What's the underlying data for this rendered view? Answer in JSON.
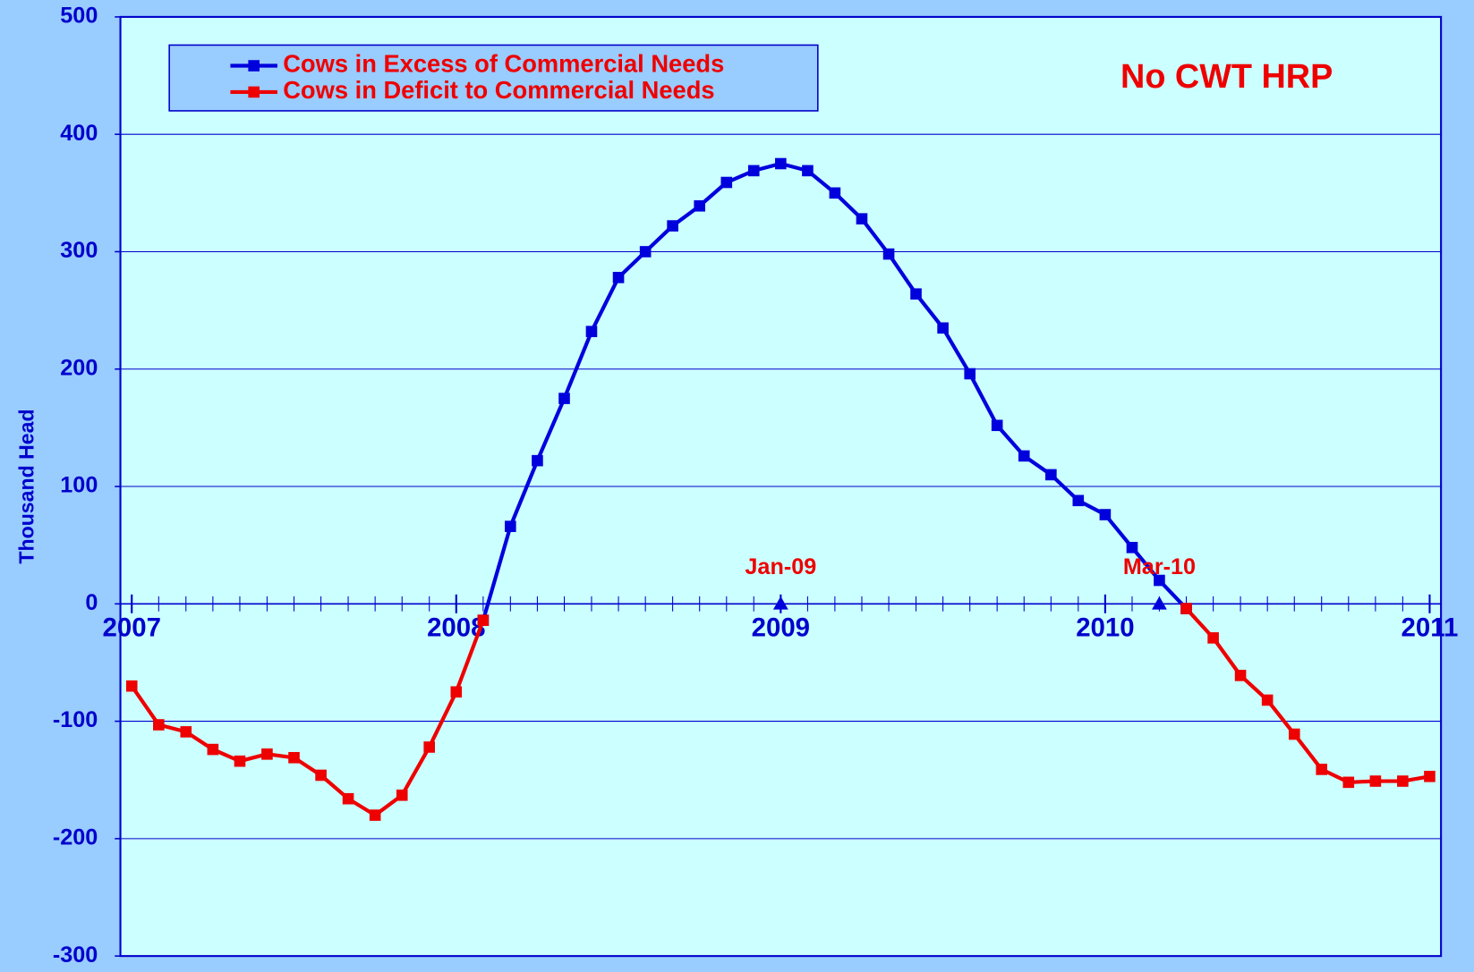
{
  "chart_data": {
    "type": "line",
    "y_label": "Thousand Head",
    "note": "No CWT HRP",
    "legend_position": "upper left",
    "grid": true,
    "x": [
      2007,
      2007.083,
      2007.167,
      2007.25,
      2007.333,
      2007.417,
      2007.5,
      2007.583,
      2007.667,
      2007.75,
      2007.833,
      2007.917,
      2008,
      2008.083,
      2008.167,
      2008.25,
      2008.333,
      2008.417,
      2008.5,
      2008.583,
      2008.667,
      2008.75,
      2008.833,
      2008.917,
      2009,
      2009.083,
      2009.167,
      2009.25,
      2009.333,
      2009.417,
      2009.5,
      2009.583,
      2009.667,
      2009.75,
      2009.833,
      2009.917,
      2010,
      2010.083,
      2010.167,
      2010.25,
      2010.333,
      2010.417,
      2010.5,
      2010.583,
      2010.667,
      2010.75,
      2010.833,
      2010.917,
      2011
    ],
    "series": [
      {
        "name": "Cows in Excess of Commercial Needs",
        "color": "#0000dd",
        "values": [
          null,
          null,
          null,
          null,
          null,
          null,
          null,
          null,
          null,
          null,
          null,
          null,
          null,
          -14,
          66,
          122,
          175,
          232,
          278,
          300,
          322,
          339,
          359,
          369,
          375,
          369,
          350,
          328,
          298,
          264,
          235,
          196,
          152,
          126,
          110,
          88,
          76,
          48,
          20,
          -4,
          null,
          null,
          null,
          null,
          null,
          null,
          null,
          null,
          null
        ]
      },
      {
        "name": "Cows in Deficit to Commercial Needs",
        "color": "#ee0000",
        "values": [
          -70,
          -103,
          -109,
          -124,
          -134,
          -128,
          -131,
          -146,
          -166,
          -180,
          -163,
          -122,
          -75,
          -14,
          null,
          null,
          null,
          null,
          null,
          null,
          null,
          null,
          null,
          null,
          null,
          null,
          null,
          null,
          null,
          null,
          null,
          null,
          null,
          null,
          null,
          null,
          null,
          null,
          null,
          -4,
          -29,
          -61,
          -82,
          -111,
          -141,
          -152,
          -151,
          -151,
          -147
        ]
      }
    ],
    "annotations": [
      {
        "text": "Jan-09",
        "x": 2009,
        "y": 0
      },
      {
        "text": "Mar-10",
        "x": 2010.167,
        "y": 0
      }
    ],
    "xlim": [
      2006.965,
      2011.035
    ],
    "xticks": [
      2007,
      2008,
      2009,
      2010,
      2011
    ],
    "ylim": [
      -300,
      500
    ],
    "yticks": [
      -300,
      -200,
      -100,
      0,
      100,
      200,
      300,
      400,
      500
    ]
  }
}
